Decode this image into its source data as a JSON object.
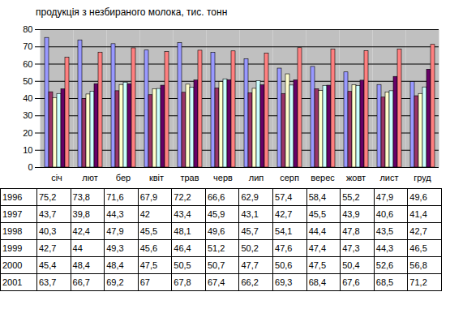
{
  "chart_data": {
    "type": "bar",
    "title": "продукція з незбираного молока, тис. тонн",
    "categories": [
      "січ",
      "лют",
      "бер",
      "квіт",
      "трав",
      "черв",
      "лип",
      "серп",
      "верес",
      "жовт",
      "лист",
      "груд"
    ],
    "series": [
      {
        "name": "1996",
        "color": "#9999ff",
        "values": [
          75.2,
          73.8,
          71.6,
          67.9,
          72.2,
          66.6,
          62.9,
          57.4,
          58.4,
          55.2,
          47.9,
          49.6
        ],
        "value_labels": [
          "75,2",
          "73,8",
          "71,6",
          "67,9",
          "72,2",
          "66,6",
          "62,9",
          "57,4",
          "58,4",
          "55,2",
          "47,9",
          "49,6"
        ]
      },
      {
        "name": "1997",
        "color": "#993366",
        "values": [
          43.7,
          39.8,
          44.3,
          42,
          43.4,
          45.9,
          43.1,
          42.7,
          45.5,
          43.9,
          40.6,
          41.4
        ],
        "value_labels": [
          "43,7",
          "39,8",
          "44,3",
          "42",
          "43,4",
          "45,9",
          "43,1",
          "42,7",
          "45,5",
          "43,9",
          "40,6",
          "41,4"
        ]
      },
      {
        "name": "1998",
        "color": "#ffffcc",
        "values": [
          40.3,
          42.4,
          47.9,
          45.5,
          48.1,
          49.6,
          45.7,
          54.1,
          44.4,
          47.8,
          43.5,
          42.7
        ],
        "value_labels": [
          "40,3",
          "42,4",
          "47,9",
          "45,5",
          "48,1",
          "49,6",
          "45,7",
          "54,1",
          "44,4",
          "47,8",
          "43,5",
          "42,7"
        ]
      },
      {
        "name": "1999",
        "color": "#ccffff",
        "values": [
          42.7,
          44,
          49.3,
          45.6,
          46.4,
          51.2,
          50.2,
          47.6,
          47.4,
          47.3,
          44.3,
          46.5
        ],
        "value_labels": [
          "42,7",
          "44",
          "49,3",
          "45,6",
          "46,4",
          "51,2",
          "50,2",
          "47,6",
          "47,4",
          "47,3",
          "44,3",
          "46,5"
        ]
      },
      {
        "name": "2000",
        "color": "#660066",
        "values": [
          45.4,
          48.4,
          48.4,
          47.5,
          50.5,
          50.7,
          47.7,
          50.6,
          47.5,
          50.4,
          52.6,
          56.8
        ],
        "value_labels": [
          "45,4",
          "48,4",
          "48,4",
          "47,5",
          "50,5",
          "50,7",
          "47,7",
          "50,6",
          "47,5",
          "50,4",
          "52,6",
          "56,8"
        ]
      },
      {
        "name": "2001",
        "color": "#ff8080",
        "values": [
          63.7,
          66.7,
          69.2,
          67,
          67.8,
          67.4,
          66.2,
          69.3,
          68.4,
          67.6,
          68.5,
          71.2
        ],
        "value_labels": [
          "63,7",
          "66,7",
          "69,2",
          "67",
          "67,8",
          "67,4",
          "66,2",
          "69,3",
          "68,4",
          "67,6",
          "68,5",
          "71,2"
        ]
      }
    ],
    "ylim": [
      0,
      80
    ],
    "yticks": [
      0,
      10,
      20,
      30,
      40,
      50,
      60,
      70,
      80
    ],
    "grid": true
  }
}
